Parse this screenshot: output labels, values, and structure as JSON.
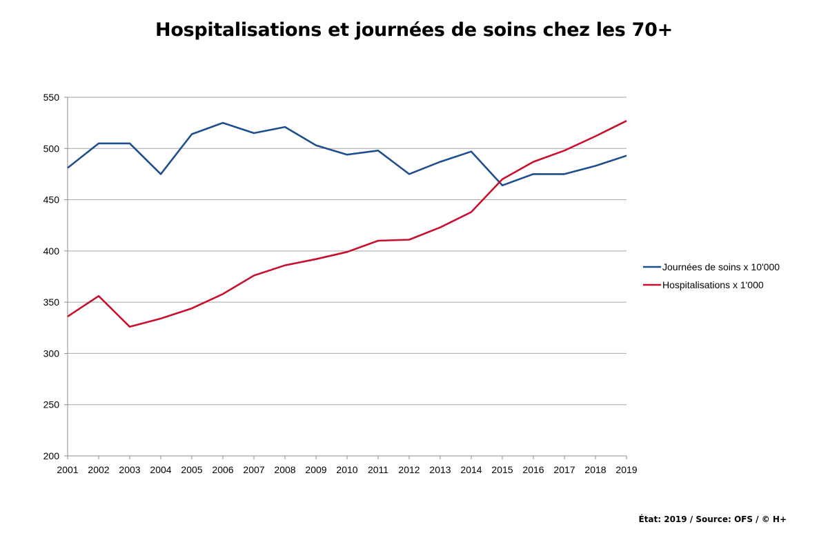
{
  "chart_data": {
    "type": "line",
    "title": "Hospitalisations et journées de soins chez les 70+",
    "xlabel": "",
    "ylabel": "",
    "categories": [
      "2001",
      "2002",
      "2003",
      "2004",
      "2005",
      "2006",
      "2007",
      "2008",
      "2009",
      "2010",
      "2011",
      "2012",
      "2013",
      "2014",
      "2015",
      "2016",
      "2017",
      "2018",
      "2019"
    ],
    "ylim": [
      200,
      550
    ],
    "yticks": [
      200,
      250,
      300,
      350,
      400,
      450,
      500,
      550
    ],
    "grid": true,
    "legend_position": "right",
    "series": [
      {
        "name": "Journées de soins x 10'000",
        "color": "#1f4e8c",
        "values": [
          481,
          505,
          505,
          475,
          514,
          525,
          515,
          521,
          503,
          494,
          498,
          475,
          487,
          497,
          464,
          475,
          475,
          483,
          493
        ]
      },
      {
        "name": "Hospitalisations x 1'000",
        "color": "#c8102e",
        "values": [
          336,
          356,
          326,
          334,
          344,
          358,
          376,
          386,
          392,
          399,
          410,
          411,
          423,
          438,
          470,
          487,
          498,
          512,
          527
        ]
      }
    ]
  },
  "footer": {
    "source": "État: 2019 / Source: OFS / © H+"
  }
}
